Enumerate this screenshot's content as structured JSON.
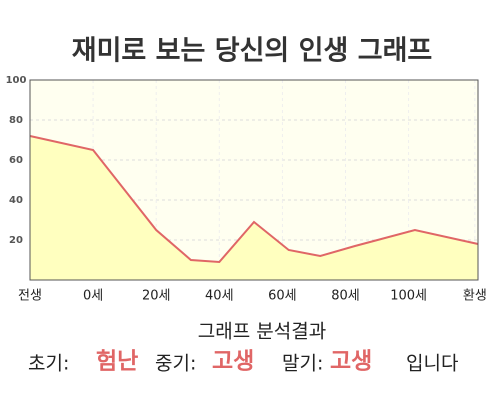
{
  "chart_data": {
    "type": "area",
    "title": "재미로 보는 당신의 인생 그래프",
    "x": [
      -20,
      0,
      20,
      31,
      40,
      51,
      62,
      72,
      83,
      102,
      122
    ],
    "values": [
      72,
      65,
      25,
      10,
      9,
      29,
      15,
      12,
      17,
      25,
      18
    ],
    "color": "#e06666",
    "fill": "#ffffbf",
    "background": "#fffff0",
    "xlim": [
      -20,
      122
    ],
    "ylim": [
      0,
      100
    ],
    "xticks": [
      {
        "value": -20,
        "label": "전생"
      },
      {
        "value": 0,
        "label": "0세"
      },
      {
        "value": 20,
        "label": "20세"
      },
      {
        "value": 40,
        "label": "40세"
      },
      {
        "value": 60,
        "label": "60세"
      },
      {
        "value": 80,
        "label": "80세"
      },
      {
        "value": 100,
        "label": "100세"
      },
      {
        "value": 121,
        "label": "환생"
      }
    ],
    "yticks": [
      20,
      40,
      60,
      80,
      100
    ],
    "grid": true
  },
  "analysis": {
    "title": "그래프 분석결과",
    "items": [
      {
        "label": "초기:",
        "value": "험난"
      },
      {
        "label": "중기:",
        "value": "고생"
      },
      {
        "label": "말기:",
        "value": "고생"
      }
    ],
    "suffix": "입니다"
  }
}
